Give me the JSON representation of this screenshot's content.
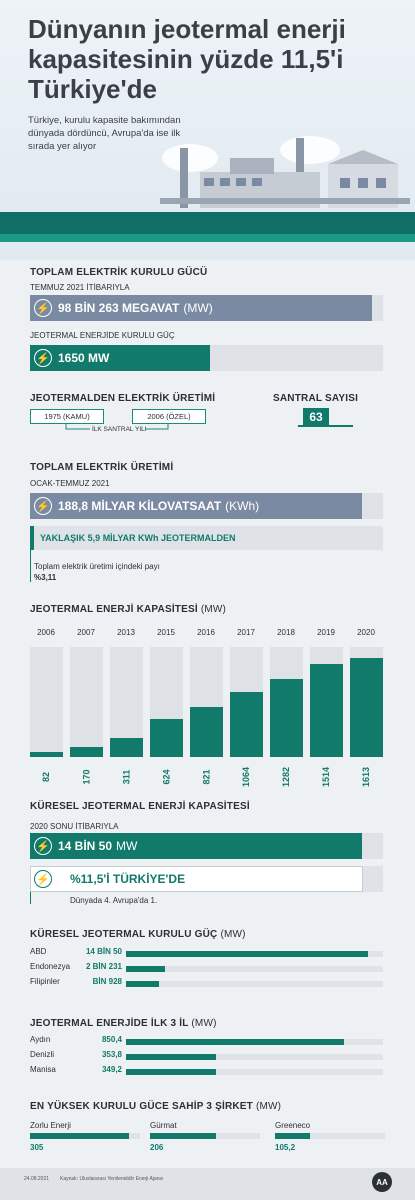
{
  "header": {
    "title": "Dünyanın jeotermal enerji kapasitesinin yüzde 11,5'i Türkiye'de",
    "subtitle": "Türkiye, kurulu kapasite bakımından dünyada dördüncü, Avrupa'da ise ilk sırada yer alıyor"
  },
  "total_installed": {
    "title": "TOPLAM ELEKTRİK KURULU GÜCÜ",
    "date": "TEMMUZ 2021 İTİBARIYLA",
    "value": "98 BİN 263 MEGAVAT",
    "unit": "(MW)",
    "geo_title": "JEOTERMAL ENERJİDE KURULU GÜÇ",
    "geo_value": "1650 MW",
    "geo_fraction": 0.0168
  },
  "first_plant": {
    "title": "JEOTERMALDEN ELEKTRİK ÜRETİMİ",
    "year_public": "1975 (KAMU)",
    "year_private": "2006 (ÖZEL)",
    "caption": "İLK SANTRAL YILI",
    "plant_count_title": "SANTRAL SAYISI",
    "plant_count": "63"
  },
  "total_generation": {
    "title": "TOPLAM ELEKTRİK ÜRETİMİ",
    "date": "OCAK-TEMMUZ 2021",
    "value": "188,8 MİLYAR KİLOVATSAAT",
    "unit": "(KWh)",
    "geo_value": "YAKLAŞIK 5,9 MİLYAR KWh JEOTERMALDEN",
    "share_label": "Toplam elektrik üretimi içindeki payı",
    "share_value": "%3,11"
  },
  "chart_data": {
    "type": "bar",
    "title": "JEOTERMAL ENERJİ KAPASİTESİ",
    "unit": "(MW)",
    "categories": [
      "2006",
      "2007",
      "2013",
      "2015",
      "2016",
      "2017",
      "2018",
      "2019",
      "2020"
    ],
    "values": [
      82,
      170,
      311,
      624,
      821,
      1064,
      1282,
      1514,
      1613
    ],
    "ylim": [
      0,
      1800
    ],
    "color": "#117a6a"
  },
  "global_capacity": {
    "title": "KÜRESEL JEOTERMAL ENERJİ KAPASİTESİ",
    "date": "2020 SONU İTİBARIYLA",
    "value": "14 BİN 50",
    "unit": "MW",
    "turkey_share": "%11,5'İ TÜRKİYE'DE",
    "turkey_fraction": 0.115,
    "rank_note": "Dünyada 4. Avrupa'da 1."
  },
  "global_installed": {
    "title": "KÜRESEL JEOTERMAL KURULU GÜÇ",
    "unit": "(MW)",
    "rows": [
      {
        "label": "ABD",
        "value": "14 BİN 50",
        "fraction": 0.94
      },
      {
        "label": "Endonezya",
        "value": "2 BİN 231",
        "fraction": 0.15
      },
      {
        "label": "Filipinler",
        "value": "BİN 928",
        "fraction": 0.13
      }
    ]
  },
  "top_provinces": {
    "title": "JEOTERMAL ENERJİDE İLK 3 İL",
    "unit": "(MW)",
    "rows": [
      {
        "label": "Aydın",
        "value": "850,4",
        "fraction": 0.85
      },
      {
        "label": "Denizli",
        "value": "353,8",
        "fraction": 0.35
      },
      {
        "label": "Manisa",
        "value": "349,2",
        "fraction": 0.35
      }
    ]
  },
  "top_companies": {
    "title": "EN YÜKSEK KURULU GÜCE SAHİP 3 ŞİRKET",
    "unit": "(MW)",
    "items": [
      {
        "label": "Zorlu Enerji",
        "value": "305",
        "fraction": 0.9
      },
      {
        "label": "Gürmat",
        "value": "206",
        "fraction": 0.6
      },
      {
        "label": "Greeneco",
        "value": "105,2",
        "fraction": 0.32
      }
    ]
  },
  "footer": {
    "date": "24.08.2021",
    "source": "Kaynak: Uluslararası Yenilenebilir Enerji Ajansı",
    "logo_text": "AA"
  },
  "colors": {
    "teal_dark": "#117a6a",
    "slate": "#7b8aa3",
    "bar_bg": "#dfe3e8"
  }
}
